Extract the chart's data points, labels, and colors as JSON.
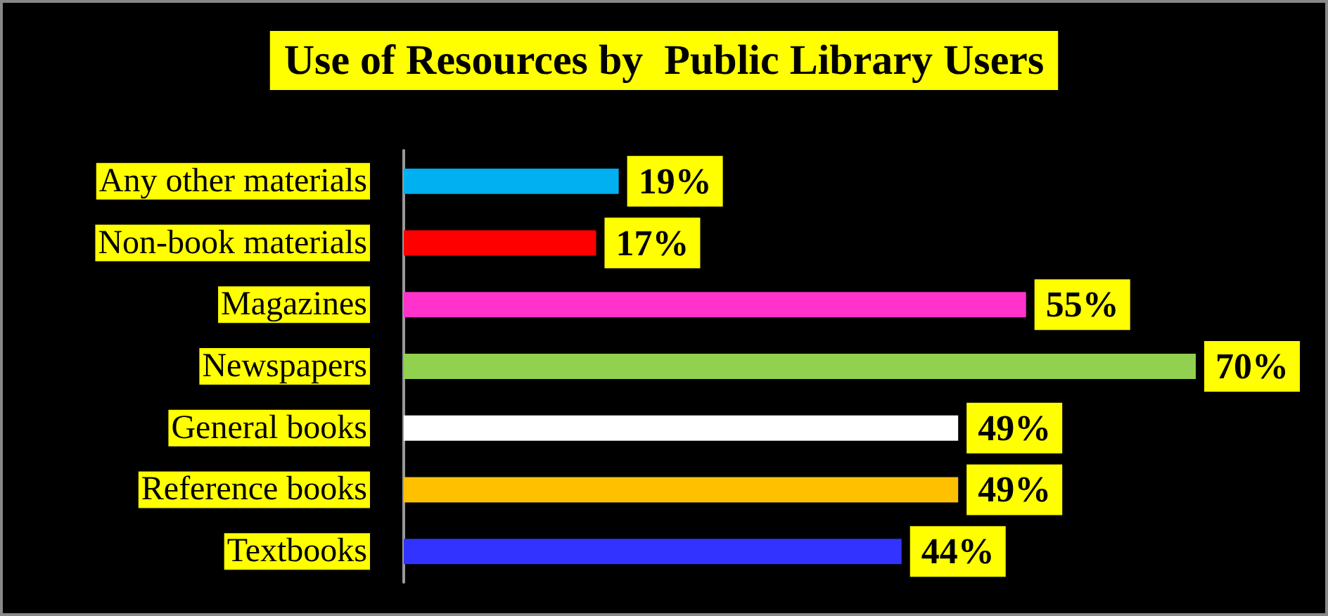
{
  "chart_data": {
    "type": "bar",
    "orientation": "horizontal",
    "title": "Use of Resources by  Public Library Users",
    "categories": [
      "Any other materials",
      "Non-book materials",
      "Magazines",
      "Newspapers",
      "General books",
      "Reference books",
      "Textbooks"
    ],
    "values": [
      19,
      17,
      55,
      70,
      49,
      49,
      44
    ],
    "colors": [
      "#00b0f0",
      "#ff0000",
      "#ff33cc",
      "#92d050",
      "#ffffff",
      "#ffc000",
      "#3333ff"
    ],
    "value_labels": [
      "19%",
      "17%",
      "55%",
      "70%",
      "49%",
      "49%",
      "44%"
    ],
    "grid": false
  }
}
